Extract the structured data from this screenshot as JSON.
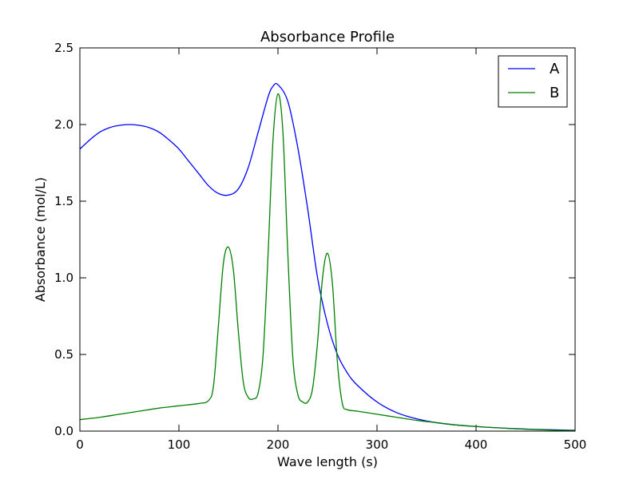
{
  "chart_data": {
    "type": "line",
    "title": "Absorbance Profile",
    "xlabel": "Wave length (s)",
    "ylabel": "Absorbance (mol/L)",
    "xlim": [
      0,
      500
    ],
    "ylim": [
      0,
      2.5
    ],
    "x_ticks": [
      0,
      100,
      200,
      300,
      400,
      500
    ],
    "x_tick_labels": [
      "0",
      "100",
      "200",
      "300",
      "400",
      "500"
    ],
    "y_ticks": [
      0,
      0.5,
      1.0,
      1.5,
      2.0,
      2.5
    ],
    "y_tick_labels": [
      "0.0",
      "0.5",
      "1.0",
      "1.5",
      "2.0",
      "2.5"
    ],
    "grid": false,
    "legend_position": "top-right",
    "series": [
      {
        "name": "A",
        "color": "#0000ff",
        "x": [
          0,
          10,
          20,
          30,
          40,
          50,
          60,
          70,
          80,
          90,
          100,
          110,
          120,
          130,
          140,
          150,
          160,
          170,
          180,
          190,
          195,
          200,
          210,
          220,
          230,
          240,
          250,
          260,
          270,
          280,
          300,
          320,
          340,
          360,
          380,
          400,
          420,
          440,
          460,
          480,
          500
        ],
        "values": [
          1.84,
          1.9,
          1.95,
          1.98,
          1.995,
          2.0,
          1.995,
          1.98,
          1.95,
          1.9,
          1.84,
          1.76,
          1.68,
          1.6,
          1.55,
          1.54,
          1.58,
          1.72,
          1.95,
          2.18,
          2.25,
          2.26,
          2.15,
          1.85,
          1.45,
          1.0,
          0.7,
          0.5,
          0.38,
          0.3,
          0.19,
          0.12,
          0.08,
          0.055,
          0.04,
          0.03,
          0.022,
          0.016,
          0.011,
          0.008,
          0.005
        ]
      },
      {
        "name": "B",
        "color": "#008000",
        "x": [
          0,
          20,
          40,
          60,
          80,
          100,
          120,
          130,
          135,
          140,
          145,
          150,
          155,
          160,
          165,
          170,
          175,
          180,
          185,
          190,
          195,
          200,
          205,
          210,
          215,
          220,
          225,
          230,
          235,
          240,
          245,
          250,
          255,
          260,
          265,
          270,
          280,
          300,
          320,
          340,
          360,
          380,
          400,
          420,
          440,
          460,
          480,
          500
        ],
        "values": [
          0.075,
          0.09,
          0.11,
          0.13,
          0.15,
          0.165,
          0.18,
          0.2,
          0.3,
          0.7,
          1.1,
          1.2,
          1.05,
          0.65,
          0.32,
          0.22,
          0.21,
          0.25,
          0.5,
          1.15,
          1.9,
          2.2,
          1.95,
          1.15,
          0.48,
          0.24,
          0.19,
          0.19,
          0.28,
          0.58,
          1.0,
          1.16,
          0.96,
          0.45,
          0.18,
          0.14,
          0.13,
          0.11,
          0.09,
          0.07,
          0.055,
          0.04,
          0.03,
          0.022,
          0.015,
          0.01,
          0.006,
          0.004
        ]
      }
    ]
  }
}
